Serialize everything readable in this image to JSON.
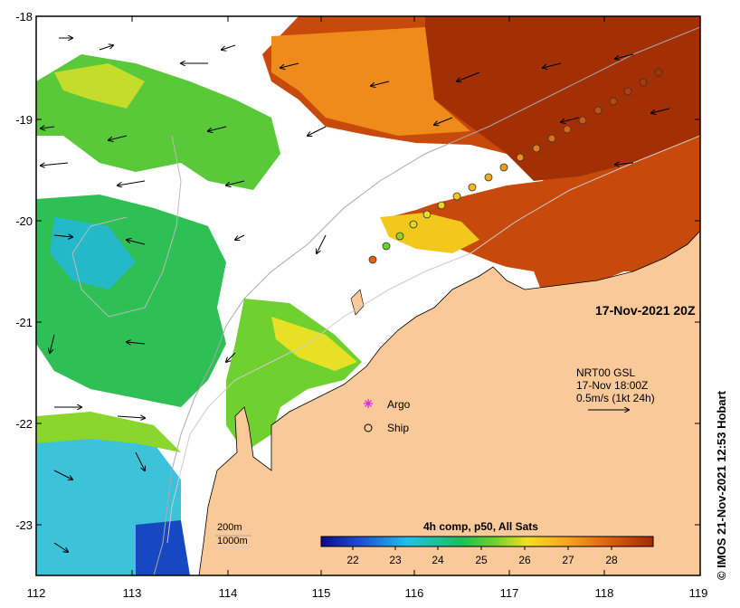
{
  "map": {
    "timestamp": "17-Nov-2021 20Z",
    "y_ticks": [
      "-18",
      "-19",
      "-20",
      "-21",
      "-22",
      "-23"
    ],
    "x_ticks": [
      "112",
      "113",
      "114",
      "115",
      "116",
      "117",
      "118",
      "119"
    ],
    "vector_note": {
      "line1": "NRT00 GSL",
      "line2": "17-Nov 18:00Z",
      "line3": "0.5m/s (1kt 24h)"
    },
    "legend": {
      "argo": "Argo",
      "ship": "Ship"
    },
    "depth_contours": {
      "shallow": "200m",
      "deep": "1000m"
    },
    "colorbar": {
      "title": "4h comp, p50, All Sats",
      "ticks": [
        "22",
        "23",
        "24",
        "25",
        "26",
        "27",
        "28"
      ]
    },
    "credit": "© IMOS 21-Nov-2021 12:53 Hobart",
    "colors": {
      "land": "#f9c99a",
      "warm": "#b83a05",
      "cool": "#2ab8e6"
    }
  }
}
